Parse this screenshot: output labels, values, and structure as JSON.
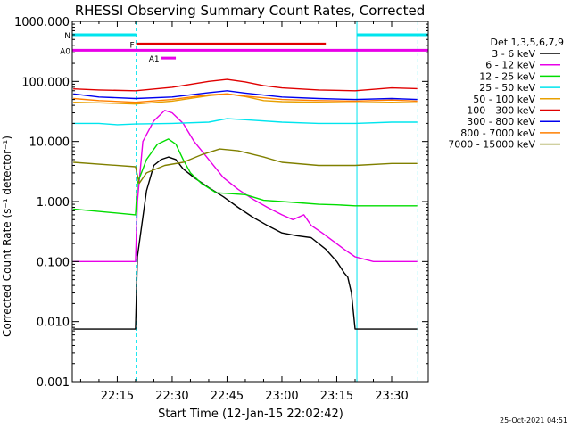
{
  "chart_data": {
    "type": "line",
    "title": "RHESSI Observing Summary Count Rates, Corrected",
    "xlabel": "Start Time (12-Jan-15 22:02:42)",
    "ylabel": "Corrected Count Rate (s⁻¹ detector⁻¹)",
    "ylog": true,
    "ylim": [
      0.001,
      1000
    ],
    "xlim": [
      "22:02:42",
      "23:40:00"
    ],
    "x_ticks": [
      "22:15",
      "22:30",
      "22:45",
      "23:00",
      "23:15",
      "23:30"
    ],
    "y_ticks": [
      "1000.000",
      "100.000",
      "10.000",
      "1.000",
      "0.100",
      "0.010",
      "0.001"
    ],
    "legend_title": "Det 1,3,5,6,7,9",
    "legend_position": "right",
    "footer": "25-Oct-2021 04:51",
    "flags": [
      {
        "label": "N",
        "color": "#00e5ee",
        "y": 600,
        "segments": [
          [
            "22:02:42",
            "22:20:10"
          ],
          [
            "23:20:30",
            "23:40:00"
          ]
        ]
      },
      {
        "label": "F",
        "color": "#e00000",
        "y": 420,
        "segments": [
          [
            "22:20:10",
            "23:12:00"
          ]
        ]
      },
      {
        "label": "A0",
        "color": "#e800e8",
        "y": 330,
        "segments": [
          [
            "22:02:42",
            "23:40:00"
          ]
        ]
      },
      {
        "label": "A1",
        "color": "#e800e8",
        "y": 245,
        "segments": [
          [
            "22:27:00",
            "22:31:00"
          ]
        ]
      }
    ],
    "vlines": [
      {
        "time": "22:02:42",
        "color": "#00e5ee",
        "style": "solid"
      },
      {
        "time": "22:20:10",
        "color": "#00e5ee",
        "style": "dashed"
      },
      {
        "time": "23:20:30",
        "color": "#00e5ee",
        "style": "solid"
      },
      {
        "time": "23:37:10",
        "color": "#00e5ee",
        "style": "dashed"
      }
    ],
    "series": [
      {
        "name": "3 - 6 keV",
        "color": "#000000",
        "points": [
          [
            "22:03",
            0.0075
          ],
          [
            "22:20",
            0.0075
          ],
          [
            "22:20:30",
            0.12
          ],
          [
            "22:23",
            1.5
          ],
          [
            "22:25",
            4.0
          ],
          [
            "22:27",
            5.0
          ],
          [
            "22:29",
            5.5
          ],
          [
            "22:31",
            5.0
          ],
          [
            "22:33",
            3.5
          ],
          [
            "22:36",
            2.5
          ],
          [
            "22:40",
            1.7
          ],
          [
            "22:44",
            1.2
          ],
          [
            "22:48",
            0.8
          ],
          [
            "22:52",
            0.55
          ],
          [
            "22:56",
            0.4
          ],
          [
            "23:00",
            0.3
          ],
          [
            "23:04",
            0.27
          ],
          [
            "23:08",
            0.25
          ],
          [
            "23:12",
            0.16
          ],
          [
            "23:15",
            0.1
          ],
          [
            "23:17",
            0.065
          ],
          [
            "23:18",
            0.055
          ],
          [
            "23:19",
            0.03
          ],
          [
            "23:20",
            0.0075
          ],
          [
            "23:37",
            0.0075
          ]
        ]
      },
      {
        "name": "6 - 12 keV",
        "color": "#e800e8",
        "points": [
          [
            "22:03",
            0.1
          ],
          [
            "22:20",
            0.1
          ],
          [
            "22:20:30",
            1.0
          ],
          [
            "22:22",
            10.0
          ],
          [
            "22:25",
            22.0
          ],
          [
            "22:28",
            33.0
          ],
          [
            "22:30",
            30.0
          ],
          [
            "22:33",
            20.0
          ],
          [
            "22:36",
            10.0
          ],
          [
            "22:40",
            5.0
          ],
          [
            "22:44",
            2.5
          ],
          [
            "22:48",
            1.6
          ],
          [
            "22:52",
            1.1
          ],
          [
            "22:56",
            0.8
          ],
          [
            "23:00",
            0.6
          ],
          [
            "23:03",
            0.5
          ],
          [
            "23:06",
            0.6
          ],
          [
            "23:08",
            0.4
          ],
          [
            "23:11",
            0.3
          ],
          [
            "23:14",
            0.22
          ],
          [
            "23:17",
            0.16
          ],
          [
            "23:20",
            0.12
          ],
          [
            "23:25",
            0.1
          ],
          [
            "23:30",
            0.1
          ],
          [
            "23:37",
            0.1
          ]
        ]
      },
      {
        "name": "12 - 25 keV",
        "color": "#00dd00",
        "points": [
          [
            "22:03",
            0.75
          ],
          [
            "22:20",
            0.6
          ],
          [
            "22:20:30",
            2.0
          ],
          [
            "22:23",
            5.0
          ],
          [
            "22:26",
            9.0
          ],
          [
            "22:29",
            11.0
          ],
          [
            "22:31",
            9.0
          ],
          [
            "22:33",
            5.0
          ],
          [
            "22:35",
            3.0
          ],
          [
            "22:38",
            2.0
          ],
          [
            "22:42",
            1.4
          ],
          [
            "22:46",
            1.35
          ],
          [
            "22:50",
            1.3
          ],
          [
            "22:55",
            1.05
          ],
          [
            "23:00",
            1.0
          ],
          [
            "23:05",
            0.95
          ],
          [
            "23:10",
            0.9
          ],
          [
            "23:15",
            0.88
          ],
          [
            "23:20",
            0.85
          ],
          [
            "23:25",
            0.85
          ],
          [
            "23:30",
            0.85
          ],
          [
            "23:37",
            0.85
          ]
        ]
      },
      {
        "name": "25 - 50 keV",
        "color": "#00e5ee",
        "points": [
          [
            "22:03",
            20.0
          ],
          [
            "22:10",
            20.0
          ],
          [
            "22:15",
            19.0
          ],
          [
            "22:20",
            19.5
          ],
          [
            "22:30",
            20.0
          ],
          [
            "22:40",
            21.0
          ],
          [
            "22:45",
            24.0
          ],
          [
            "22:50",
            23.0
          ],
          [
            "23:00",
            21.0
          ],
          [
            "23:10",
            20.0
          ],
          [
            "23:20",
            20.0
          ],
          [
            "23:30",
            21.0
          ],
          [
            "23:37",
            21.0
          ]
        ]
      },
      {
        "name": "50 - 100 keV",
        "color": "#e8a000",
        "points": [
          [
            "22:03",
            45.0
          ],
          [
            "22:10",
            44.0
          ],
          [
            "22:20",
            42.0
          ],
          [
            "22:30",
            47.0
          ],
          [
            "22:40",
            58.0
          ],
          [
            "22:45",
            62.0
          ],
          [
            "22:50",
            56.0
          ],
          [
            "22:55",
            48.0
          ],
          [
            "23:00",
            46.0
          ],
          [
            "23:10",
            45.0
          ],
          [
            "23:20",
            44.0
          ],
          [
            "23:30",
            45.0
          ],
          [
            "23:37",
            44.0
          ]
        ]
      },
      {
        "name": "100 - 300 keV",
        "color": "#e00000",
        "points": [
          [
            "22:03",
            75.0
          ],
          [
            "22:10",
            72.0
          ],
          [
            "22:20",
            70.0
          ],
          [
            "22:30",
            80.0
          ],
          [
            "22:40",
            100.0
          ],
          [
            "22:45",
            108.0
          ],
          [
            "22:50",
            98.0
          ],
          [
            "22:55",
            85.0
          ],
          [
            "23:00",
            78.0
          ],
          [
            "23:10",
            72.0
          ],
          [
            "23:20",
            70.0
          ],
          [
            "23:30",
            78.0
          ],
          [
            "23:37",
            76.0
          ]
        ]
      },
      {
        "name": "300 - 800 keV",
        "color": "#0000ee",
        "points": [
          [
            "22:03",
            62.0
          ],
          [
            "22:10",
            55.0
          ],
          [
            "22:20",
            52.0
          ],
          [
            "22:30",
            55.0
          ],
          [
            "22:40",
            65.0
          ],
          [
            "22:45",
            70.0
          ],
          [
            "22:50",
            64.0
          ],
          [
            "23:00",
            55.0
          ],
          [
            "23:10",
            52.0
          ],
          [
            "23:20",
            50.0
          ],
          [
            "23:30",
            52.0
          ],
          [
            "23:37",
            50.0
          ]
        ]
      },
      {
        "name": "800 - 7000 keV",
        "color": "#ff7f00",
        "points": [
          [
            "22:03",
            52.0
          ],
          [
            "22:10",
            48.0
          ],
          [
            "22:20",
            45.0
          ],
          [
            "22:30",
            50.0
          ],
          [
            "22:40",
            60.0
          ],
          [
            "22:45",
            62.0
          ],
          [
            "22:50",
            57.0
          ],
          [
            "23:00",
            50.0
          ],
          [
            "23:10",
            48.0
          ],
          [
            "23:20",
            47.0
          ],
          [
            "23:30",
            49.0
          ],
          [
            "23:37",
            47.0
          ]
        ]
      },
      {
        "name": "7000 - 15000 keV",
        "color": "#808000",
        "points": [
          [
            "22:03",
            4.5
          ],
          [
            "22:20",
            3.8
          ],
          [
            "22:21",
            2.0
          ],
          [
            "22:23",
            3.0
          ],
          [
            "22:28",
            4.0
          ],
          [
            "22:33",
            4.5
          ],
          [
            "22:38",
            6.0
          ],
          [
            "22:43",
            7.5
          ],
          [
            "22:48",
            7.0
          ],
          [
            "22:55",
            5.5
          ],
          [
            "23:00",
            4.5
          ],
          [
            "23:10",
            4.0
          ],
          [
            "23:20",
            4.0
          ],
          [
            "23:30",
            4.3
          ],
          [
            "23:37",
            4.3
          ]
        ]
      }
    ]
  }
}
